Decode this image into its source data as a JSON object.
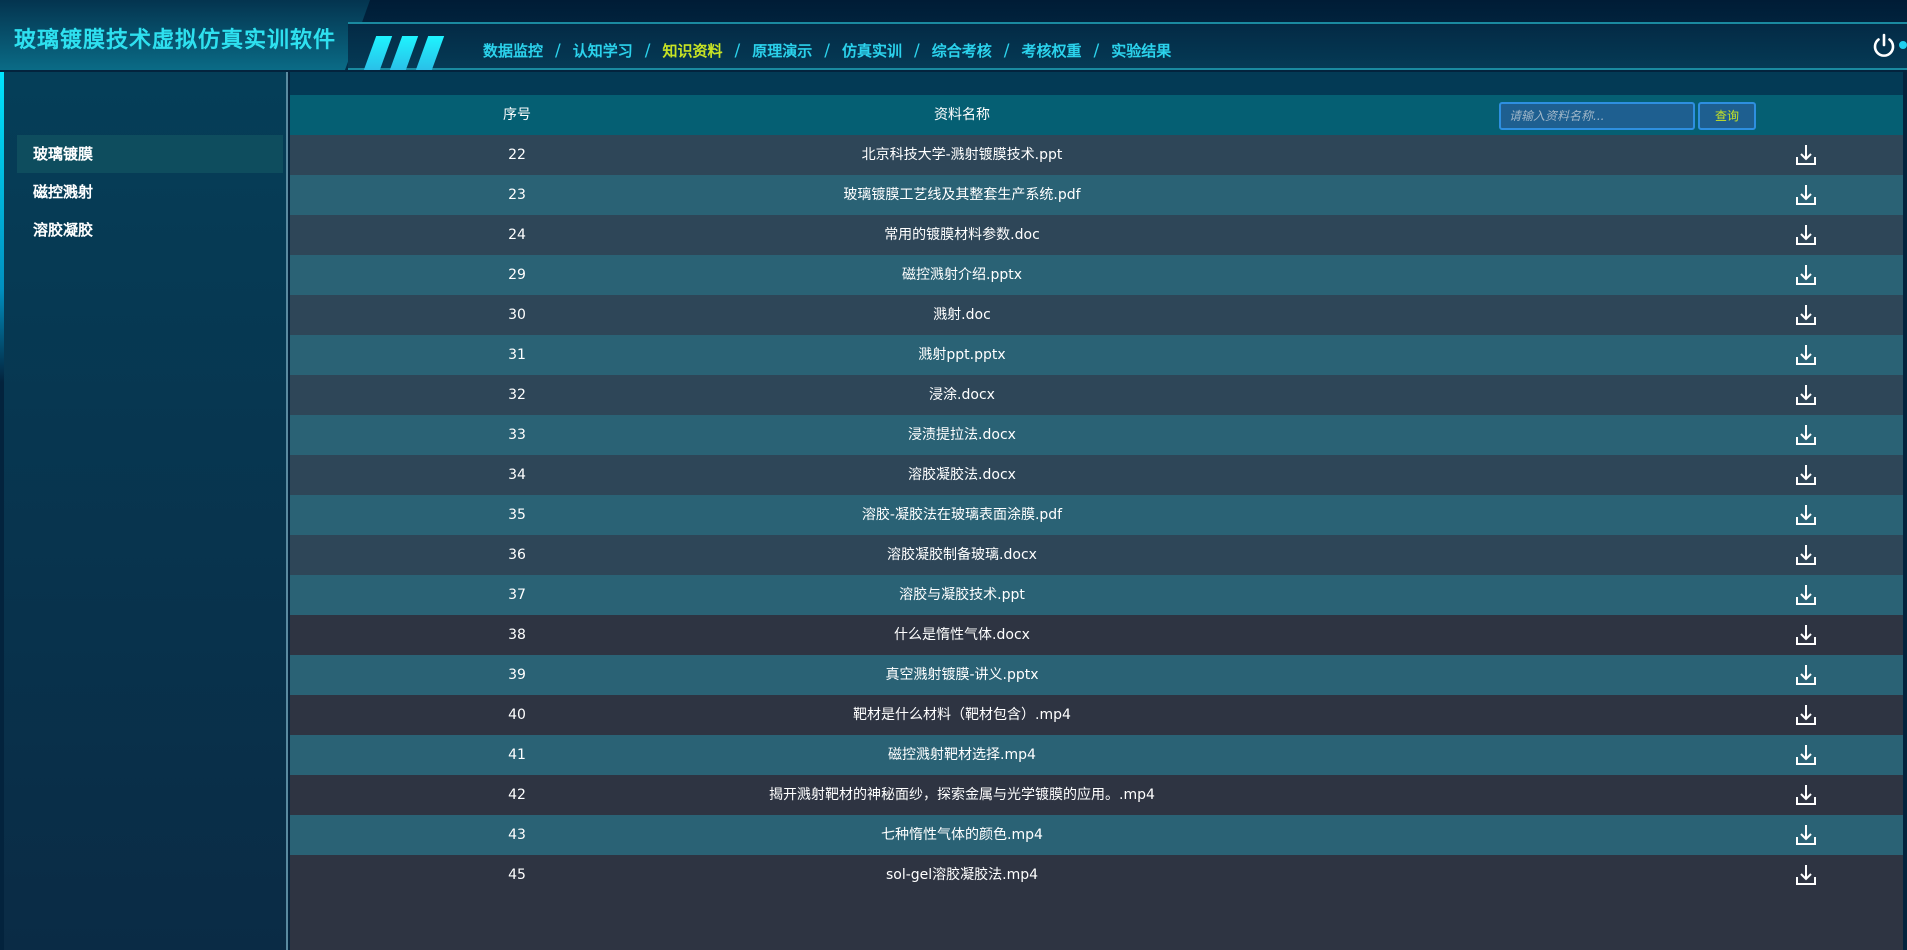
{
  "app": {
    "title": "玻璃镀膜技术虚拟仿真实训软件"
  },
  "nav": {
    "items": [
      "数据监控",
      "认知学习",
      "知识资料",
      "原理演示",
      "仿真实训",
      "综合考核",
      "考核权重",
      "实验结果"
    ],
    "active_index": 2,
    "separator": "/"
  },
  "sidebar": {
    "items": [
      "玻璃镀膜",
      "磁控溅射",
      "溶胶凝胶"
    ],
    "active_index": 0
  },
  "table": {
    "headers": {
      "index": "序号",
      "name": "资料名称"
    },
    "search": {
      "placeholder": "请输入资料名称...",
      "value": "",
      "button": "查询"
    },
    "rows": [
      {
        "id": "22",
        "name": "北京科技大学-溅射镀膜技术.ppt"
      },
      {
        "id": "23",
        "name": "玻璃镀膜工艺线及其整套生产系统.pdf"
      },
      {
        "id": "24",
        "name": "常用的镀膜材料参数.doc"
      },
      {
        "id": "29",
        "name": "磁控溅射介绍.pptx"
      },
      {
        "id": "30",
        "name": "溅射.doc"
      },
      {
        "id": "31",
        "name": "溅射ppt.pptx"
      },
      {
        "id": "32",
        "name": "浸涂.docx"
      },
      {
        "id": "33",
        "name": "浸渍提拉法.docx"
      },
      {
        "id": "34",
        "name": "溶胶凝胶法.docx"
      },
      {
        "id": "35",
        "name": "溶胶-凝胶法在玻璃表面涂膜.pdf"
      },
      {
        "id": "36",
        "name": "溶胶凝胶制备玻璃.docx"
      },
      {
        "id": "37",
        "name": "溶胶与凝胶技术.ppt"
      },
      {
        "id": "38",
        "name": "什么是惰性气体.docx"
      },
      {
        "id": "39",
        "name": "真空溅射镀膜-讲义.pptx"
      },
      {
        "id": "40",
        "name": "靶材是什么材料（靶材包含）.mp4"
      },
      {
        "id": "41",
        "name": "磁控溅射靶材选择.mp4"
      },
      {
        "id": "42",
        "name": "揭开溅射靶材的神秘面纱，探索金属与光学镀膜的应用。.mp4"
      },
      {
        "id": "43",
        "name": "七种惰性气体的颜色.mp4"
      },
      {
        "id": "45",
        "name": "sol-gel溶胶凝胶法.mp4"
      }
    ],
    "row_icon": "download-icon"
  },
  "colors": {
    "accent": "#2bd2ec",
    "active_nav": "#c8e324",
    "header_row": "#055f73",
    "row_teal": "#2a6275",
    "row_dark": "#2e3442"
  }
}
